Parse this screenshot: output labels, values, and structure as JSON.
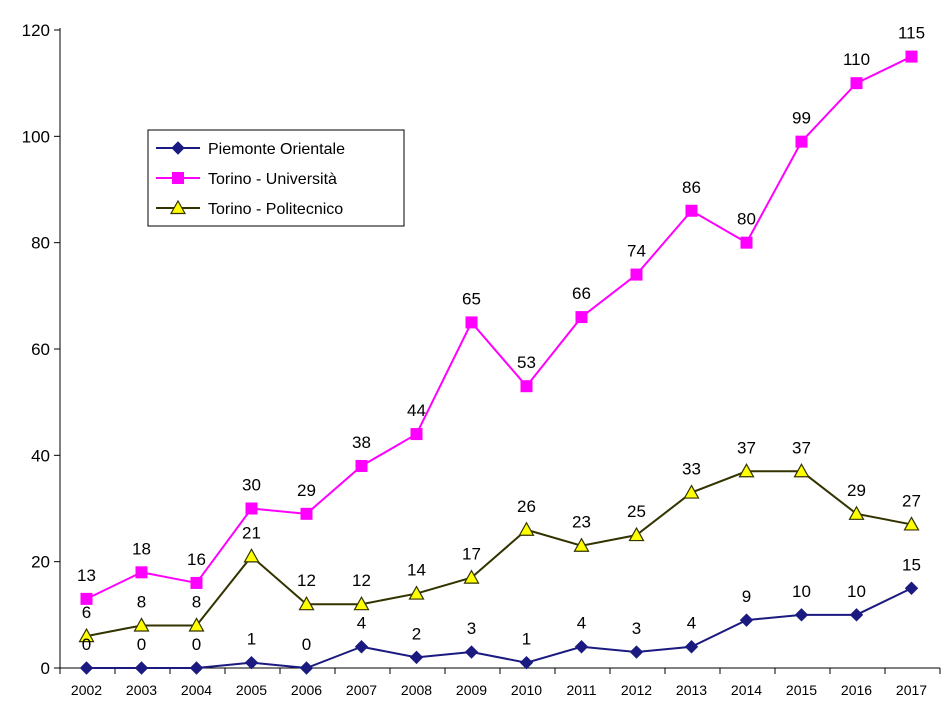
{
  "chart_data": {
    "type": "line",
    "title": "",
    "xlabel": "",
    "ylabel": "",
    "ylim": [
      0,
      120
    ],
    "yticks": [
      0,
      20,
      40,
      60,
      80,
      100,
      120
    ],
    "grid": false,
    "legend_position": "top-left",
    "categories": [
      "2002",
      "2003",
      "2004",
      "2005",
      "2006",
      "2007",
      "2008",
      "2009",
      "2010",
      "2011",
      "2012",
      "2013",
      "2014",
      "2015",
      "2016",
      "2017"
    ],
    "series": [
      {
        "name": "Piemonte Orientale",
        "color": "#1a1a80",
        "marker": "diamond",
        "values": [
          0,
          0,
          0,
          1,
          0,
          4,
          2,
          3,
          1,
          4,
          3,
          4,
          9,
          10,
          10,
          15
        ]
      },
      {
        "name": "Torino - Università",
        "color": "#ff00ff",
        "marker": "square",
        "values": [
          13,
          18,
          16,
          30,
          29,
          38,
          44,
          65,
          53,
          66,
          74,
          86,
          80,
          99,
          110,
          115
        ]
      },
      {
        "name": "Torino - Politecnico",
        "color": "#333300",
        "fill": "#ffff00",
        "marker": "triangle",
        "values": [
          6,
          8,
          8,
          21,
          12,
          12,
          14,
          17,
          26,
          23,
          25,
          33,
          37,
          37,
          29,
          27
        ]
      }
    ]
  }
}
